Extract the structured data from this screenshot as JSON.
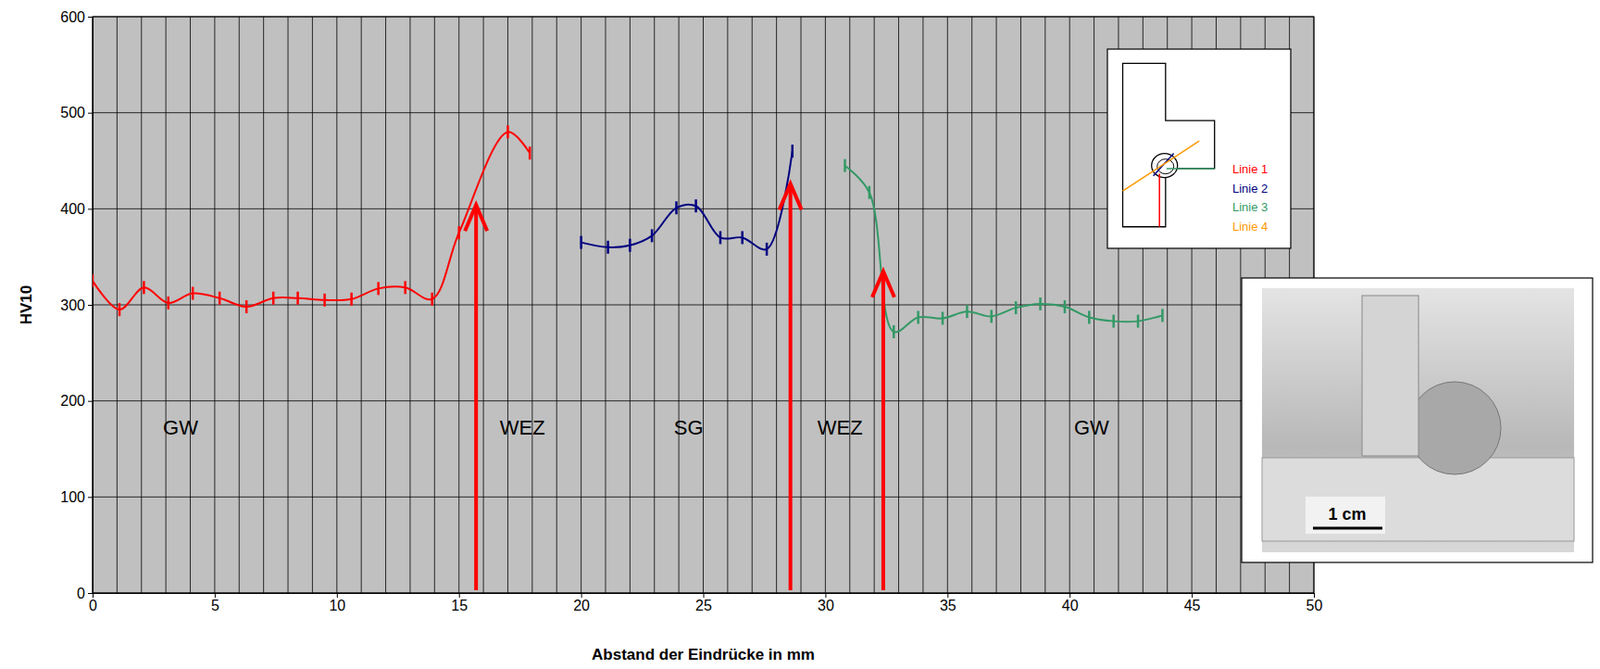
{
  "chart_data": {
    "type": "line",
    "xlabel": "Abstand der Eindrücke in mm",
    "ylabel": "HV10",
    "xlim": [
      0,
      50
    ],
    "xticks": [
      0,
      5,
      10,
      15,
      20,
      25,
      30,
      35,
      40,
      45,
      50
    ],
    "ylim": [
      0,
      600
    ],
    "yticks": [
      0,
      100,
      200,
      300,
      400,
      500,
      600
    ],
    "grid": true,
    "marker": "vline",
    "legend": "upper right",
    "series": [
      {
        "name": "Linie 1",
        "color": "#ff0000",
        "x": [
          0,
          1.1,
          2.1,
          3.1,
          4.1,
          5.2,
          6.3,
          7.4,
          8.4,
          9.5,
          10.6,
          11.7,
          12.8,
          13.9,
          15.0,
          17.0,
          17.9
        ],
        "values": [
          325,
          295,
          318,
          302,
          312,
          307,
          298,
          307,
          307,
          305,
          306,
          317,
          318,
          306,
          375,
          480,
          458
        ]
      },
      {
        "name": "Linie 2",
        "color": "#000080",
        "x": [
          20.0,
          21.1,
          22.0,
          22.9,
          23.9,
          24.7,
          25.7,
          26.6,
          27.6,
          28.65
        ],
        "values": [
          365,
          360,
          362,
          372,
          401,
          403,
          370,
          370,
          358,
          460
        ]
      },
      {
        "name": "Linie 3",
        "color": "#339966",
        "x": [
          30.8,
          31.8,
          32.8,
          33.8,
          34.8,
          35.8,
          36.8,
          37.8,
          38.8,
          39.8,
          40.8,
          41.8,
          42.8,
          43.8
        ],
        "values": [
          445,
          417,
          272,
          287,
          286,
          293,
          288,
          297,
          301,
          298,
          287,
          283,
          283,
          289
        ]
      },
      {
        "name": "Linie 4",
        "color": "#ff9900",
        "x": [],
        "values": []
      }
    ],
    "annotations": [
      {
        "text": "GW",
        "x": 3.6,
        "y": 171
      },
      {
        "text": "WEZ",
        "x": 17.6,
        "y": 171
      },
      {
        "text": "SG",
        "x": 24.4,
        "y": 171
      },
      {
        "text": "WEZ",
        "x": 30.6,
        "y": 171
      },
      {
        "text": "GW",
        "x": 40.9,
        "y": 171
      }
    ],
    "arrows": [
      {
        "x": 15.7,
        "y": 404
      },
      {
        "x": 28.57,
        "y": 426
      },
      {
        "x": 32.37,
        "y": 335
      }
    ],
    "photo_label": "1 cm"
  }
}
